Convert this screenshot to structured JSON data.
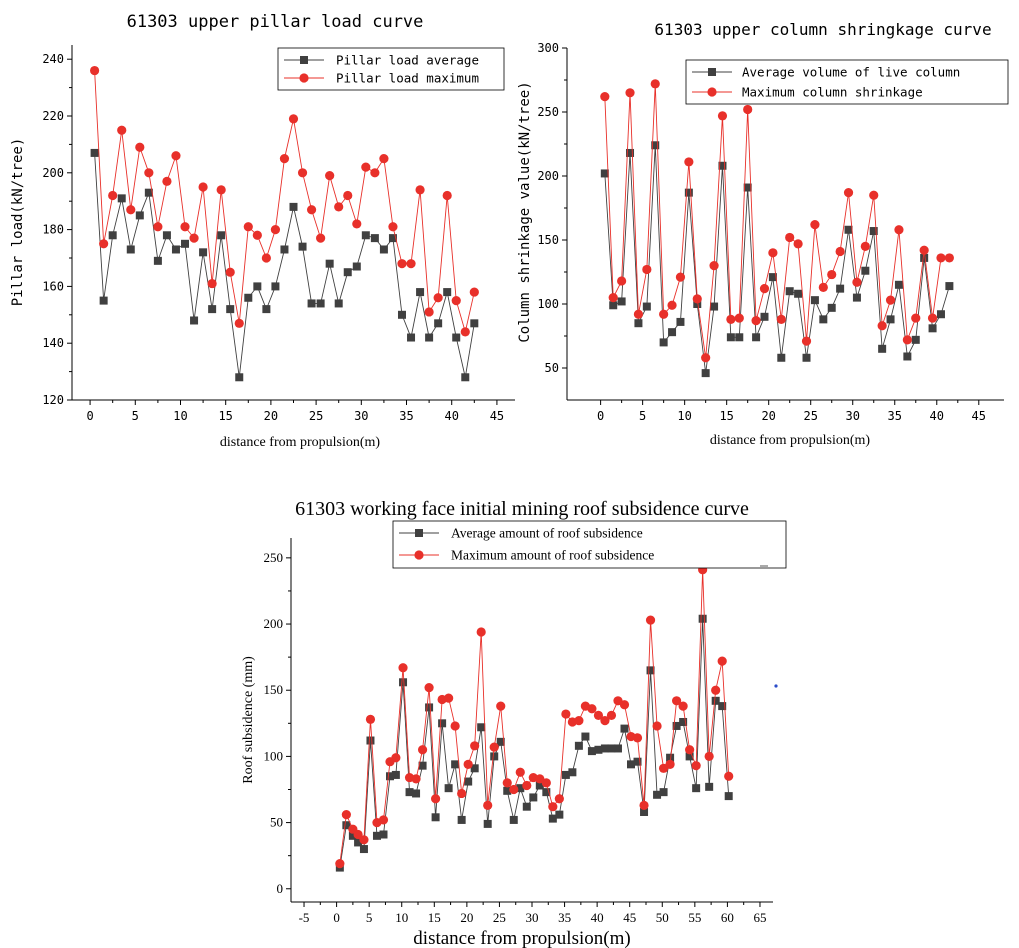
{
  "chart_data": [
    {
      "type": "line",
      "title": "61303 upper pillar load curve",
      "xlabel": "distance from propulsion(m)",
      "ylabel": "Pillar load(kN/tree)",
      "xlim": [
        -2,
        47
      ],
      "ylim": [
        120,
        245
      ],
      "xticks": [
        0,
        5,
        10,
        15,
        20,
        25,
        30,
        35,
        40,
        45
      ],
      "yticks": [
        120,
        140,
        160,
        180,
        200,
        220,
        240
      ],
      "x": [
        0.5,
        1.5,
        2.5,
        3.5,
        4.5,
        5.5,
        6.5,
        7.5,
        8.5,
        9.5,
        10.5,
        11.5,
        12.5,
        13.5,
        14.5,
        15.5,
        16.5,
        17.5,
        18.5,
        19.5,
        20.5,
        21.5,
        22.5,
        23.5,
        24.5,
        25.5,
        26.5,
        27.5,
        28.5,
        29.5,
        30.5,
        31.5,
        32.5,
        33.5,
        34.5,
        35.5,
        36.5,
        37.5,
        38.5,
        39.5,
        40.5,
        41.5,
        42.5
      ],
      "series": [
        {
          "name": "Pillar load average",
          "color": "#404040",
          "marker": "square",
          "values": [
            207,
            155,
            178,
            191,
            173,
            185,
            193,
            169,
            178,
            173,
            175,
            148,
            172,
            152,
            178,
            152,
            128,
            156,
            160,
            152,
            160,
            173,
            188,
            174,
            154,
            154,
            168,
            154,
            165,
            167,
            178,
            177,
            173,
            177,
            150,
            142,
            158,
            142,
            147,
            158,
            142,
            128,
            147
          ]
        },
        {
          "name": "Pillar load maximum",
          "color": "#e8302a",
          "marker": "circle",
          "values": [
            236,
            175,
            192,
            215,
            187,
            209,
            200,
            181,
            197,
            206,
            181,
            177,
            195,
            161,
            194,
            165,
            147,
            181,
            178,
            170,
            180,
            205,
            219,
            200,
            187,
            177,
            199,
            188,
            192,
            182,
            202,
            200,
            205,
            181,
            168,
            168,
            194,
            151,
            156,
            192,
            155,
            144,
            158
          ]
        }
      ],
      "legend_position": "top-right",
      "grid": false
    },
    {
      "type": "line",
      "title": "61303 upper column shringkage curve",
      "xlabel": "distance from propulsion(m)",
      "ylabel": "Column shrinkage value(kN/tree)",
      "xlim": [
        -4,
        48
      ],
      "ylim": [
        25,
        300
      ],
      "xticks": [
        0,
        5,
        10,
        15,
        20,
        25,
        30,
        35,
        40,
        45
      ],
      "yticks": [
        50,
        100,
        150,
        200,
        250,
        300
      ],
      "x": [
        0.5,
        1.5,
        2.5,
        3.5,
        4.5,
        5.5,
        6.5,
        7.5,
        8.5,
        9.5,
        10.5,
        11.5,
        12.5,
        13.5,
        14.5,
        15.5,
        16.5,
        17.5,
        18.5,
        19.5,
        20.5,
        21.5,
        22.5,
        23.5,
        24.5,
        25.5,
        26.5,
        27.5,
        28.5,
        29.5,
        30.5,
        31.5,
        32.5,
        33.5,
        34.5,
        35.5,
        36.5,
        37.5,
        38.5,
        39.5,
        40.5,
        41.5
      ],
      "series": [
        {
          "name": "Average volume of live column",
          "color": "#404040",
          "marker": "square",
          "values": [
            202,
            99,
            102,
            218,
            85,
            98,
            224,
            70,
            78,
            86,
            187,
            100,
            46,
            98,
            208,
            74,
            74,
            191,
            74,
            90,
            121,
            58,
            110,
            108,
            58,
            103,
            88,
            97,
            112,
            158,
            105,
            126,
            157,
            65,
            88,
            115,
            59,
            72,
            136,
            81,
            92,
            114
          ]
        },
        {
          "name": "Maximum column shrinkage",
          "color": "#e8302a",
          "marker": "circle",
          "values": [
            262,
            105,
            118,
            265,
            92,
            127,
            272,
            92,
            99,
            121,
            211,
            104,
            58,
            130,
            247,
            88,
            89,
            252,
            87,
            112,
            140,
            88,
            152,
            147,
            71,
            162,
            113,
            123,
            141,
            187,
            117,
            145,
            185,
            83,
            103,
            158,
            72,
            89,
            142,
            89,
            136,
            136
          ]
        }
      ],
      "legend_position": "top",
      "grid": false
    },
    {
      "type": "line",
      "title": "61303 working face initial mining roof subsidence curve",
      "xlabel": "distance from propulsion(m)",
      "ylabel": "Roof subsidence (mm)",
      "xlim": [
        -7,
        67
      ],
      "ylim": [
        -10,
        265
      ],
      "xticks": [
        -5,
        0,
        5,
        10,
        15,
        20,
        25,
        30,
        35,
        40,
        45,
        50,
        55,
        60,
        65
      ],
      "yticks": [
        0,
        50,
        100,
        150,
        200,
        250
      ],
      "x": [
        0.5,
        1.5,
        2.5,
        3.3,
        4.2,
        5.2,
        6.2,
        7.2,
        8.2,
        9.1,
        10.2,
        11.2,
        12.2,
        13.2,
        14.2,
        15.2,
        16.2,
        17.2,
        18.2,
        19.2,
        20.2,
        21.2,
        22.2,
        23.2,
        24.2,
        25.2,
        26.2,
        27.2,
        28.2,
        29.2,
        30.2,
        31.2,
        32.2,
        33.2,
        34.2,
        35.2,
        36.2,
        37.2,
        38.2,
        39.2,
        40.2,
        41.2,
        42.2,
        43.2,
        44.2,
        45.2,
        46.2,
        47.2,
        48.2,
        49.2,
        50.2,
        51.2,
        52.2,
        53.2,
        54.2,
        55.2,
        56.2,
        57.2,
        58.2,
        59.2,
        60.2
      ],
      "series": [
        {
          "name": "Average amount of roof subsidence",
          "color": "#404040",
          "marker": "square",
          "values": [
            16,
            48,
            40,
            35,
            30,
            112,
            40,
            41,
            85,
            86,
            156,
            73,
            72,
            93,
            137,
            54,
            125,
            76,
            94,
            52,
            81,
            91,
            122,
            49,
            100,
            111,
            74,
            52,
            76,
            62,
            69,
            78,
            73,
            53,
            56,
            86,
            88,
            108,
            115,
            104,
            105,
            106,
            106,
            106,
            121,
            94,
            96,
            58,
            165,
            71,
            73,
            99,
            123,
            126,
            100,
            76,
            204,
            77,
            142,
            138,
            70
          ]
        },
        {
          "name": "Maximum amount of roof subsidence",
          "color": "#e8302a",
          "marker": "circle",
          "values": [
            19,
            56,
            45,
            41,
            37,
            128,
            50,
            52,
            96,
            99,
            167,
            84,
            83,
            105,
            152,
            68,
            143,
            144,
            123,
            72,
            94,
            108,
            194,
            63,
            107,
            138,
            80,
            75,
            88,
            78,
            84,
            83,
            80,
            62,
            68,
            132,
            126,
            127,
            138,
            136,
            131,
            127,
            131,
            142,
            139,
            115,
            114,
            63,
            203,
            123,
            91,
            94,
            142,
            138,
            105,
            93,
            241,
            100,
            150,
            172,
            85
          ]
        }
      ],
      "legend_position": "top",
      "grid": false
    }
  ]
}
